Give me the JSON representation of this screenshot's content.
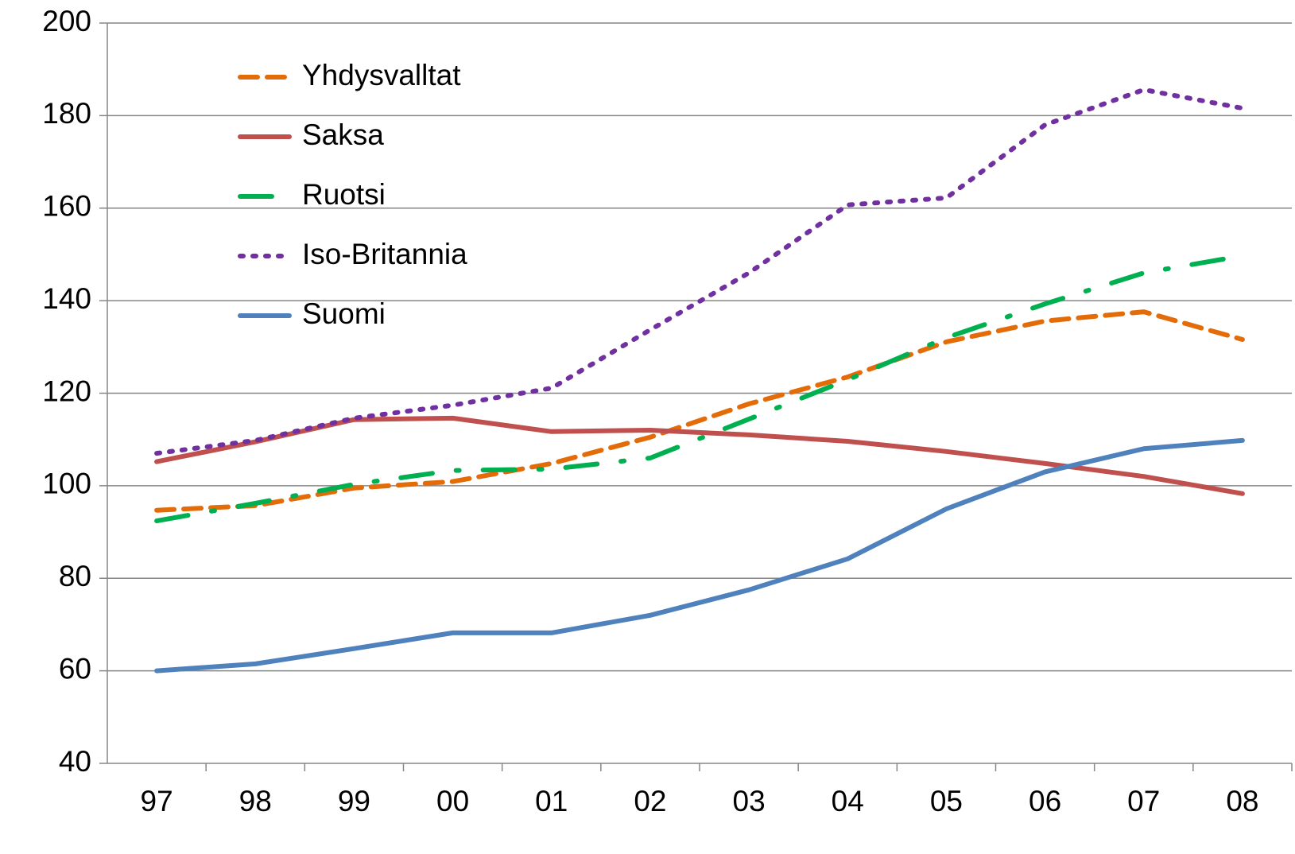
{
  "chart_data": {
    "type": "line",
    "categories": [
      "97",
      "98",
      "99",
      "00",
      "01",
      "02",
      "03",
      "04",
      "05",
      "06",
      "07",
      "08"
    ],
    "series": [
      {
        "name": "Yhdysvalltat",
        "color": "#e36c09",
        "dash": "dash",
        "values": [
          94.7,
          95.7,
          99.5,
          100.9,
          104.8,
          110.5,
          117.7,
          123.5,
          131.1,
          135.6,
          137.6,
          131.6
        ]
      },
      {
        "name": "Saksa",
        "color": "#c0504d",
        "dash": "solid",
        "values": [
          105.2,
          109.5,
          114.3,
          114.6,
          111.7,
          112,
          111,
          109.6,
          107.4,
          104.8,
          102,
          98.3
        ]
      },
      {
        "name": "Ruotsi",
        "color": "#00b050",
        "dash": "long-dash-dot",
        "values": [
          92.4,
          96.2,
          100.3,
          103.3,
          103.6,
          106,
          114.4,
          122.9,
          132,
          139.3,
          146,
          149.7
        ]
      },
      {
        "name": "Iso-Britannia",
        "color": "#7030a0",
        "dash": "dot",
        "values": [
          107,
          109.8,
          114.6,
          117.4,
          121.1,
          133.7,
          146,
          160.7,
          162.2,
          178,
          185.6,
          181.6
        ]
      },
      {
        "name": "Suomi",
        "color": "#4f81bd",
        "dash": "solid",
        "values": [
          60,
          61.5,
          64.8,
          68.2,
          68.2,
          72,
          77.5,
          84.2,
          95,
          103,
          108,
          109.8
        ]
      }
    ],
    "ylim": [
      40,
      200
    ],
    "yticks": [
      40,
      60,
      80,
      100,
      120,
      140,
      160,
      180,
      200
    ],
    "grid": true,
    "legend": "upper-left"
  }
}
